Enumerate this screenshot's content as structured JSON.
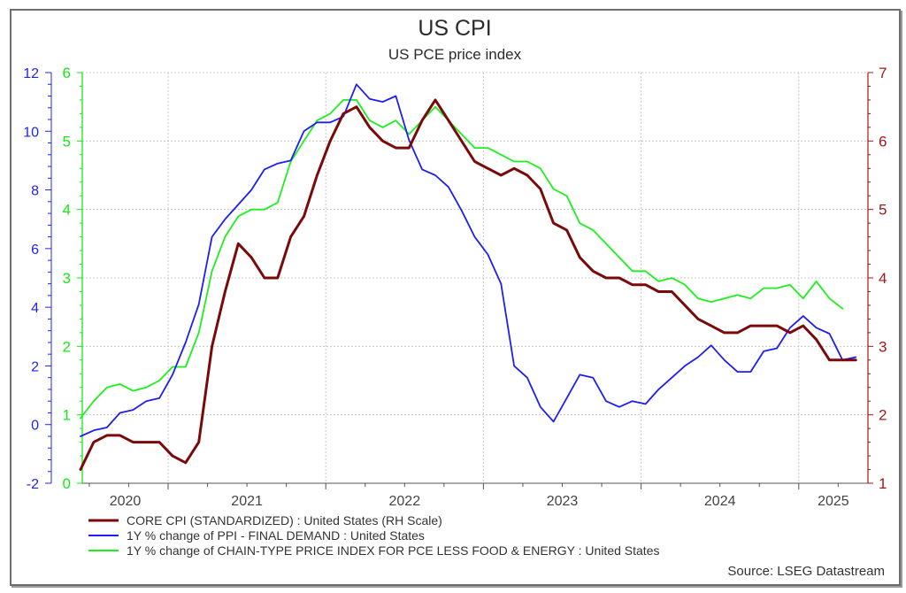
{
  "chart_data": {
    "type": "line",
    "title": "US CPI",
    "subtitle": "US PCE price index",
    "source": "Source: LSEG Datastream",
    "x_start": "2020-06",
    "x_frequency": "monthly",
    "x_ticks": [
      "2020",
      "2021",
      "2022",
      "2023",
      "2024",
      "2025"
    ],
    "axes": {
      "left_outer": {
        "color": "#2323f0",
        "range": [
          -2,
          12
        ],
        "ticks": [
          "-2",
          "0",
          "2",
          "4",
          "6",
          "8",
          "10",
          "12"
        ],
        "series": "PPI"
      },
      "left_inner": {
        "color": "#19e619",
        "range": [
          0,
          6
        ],
        "ticks": [
          "0",
          "1",
          "2",
          "3",
          "4",
          "5",
          "6"
        ],
        "series": "PCE"
      },
      "right": {
        "color": "#a01818",
        "range": [
          1,
          7
        ],
        "ticks": [
          "1",
          "2",
          "3",
          "4",
          "5",
          "6",
          "7"
        ],
        "series": "CPI"
      }
    },
    "grid": true,
    "legend_position": "bottom-left",
    "series": [
      {
        "key": "CPI",
        "name": "CORE CPI (STANDARDIZED) : United States (RH Scale)",
        "color": "#7a0a0a",
        "axis": "right",
        "values": [
          1.2,
          1.6,
          1.7,
          1.7,
          1.6,
          1.6,
          1.6,
          1.4,
          1.3,
          1.6,
          3.0,
          3.8,
          4.5,
          4.3,
          4.0,
          4.0,
          4.6,
          4.9,
          5.5,
          6.0,
          6.4,
          6.5,
          6.2,
          6.0,
          5.9,
          5.9,
          6.3,
          6.6,
          6.3,
          6.0,
          5.7,
          5.6,
          5.5,
          5.6,
          5.5,
          5.3,
          4.8,
          4.7,
          4.3,
          4.1,
          4.0,
          4.0,
          3.9,
          3.9,
          3.8,
          3.8,
          3.6,
          3.4,
          3.3,
          3.2,
          3.2,
          3.3,
          3.3,
          3.3,
          3.2,
          3.3,
          3.1,
          2.8,
          2.8,
          2.8
        ]
      },
      {
        "key": "PPI",
        "name": "1Y % change of PPI - FINAL DEMAND : United States",
        "color": "#1e1ef5",
        "axis": "left_outer",
        "values": [
          -0.4,
          -0.2,
          -0.1,
          0.4,
          0.5,
          0.8,
          0.9,
          1.7,
          2.8,
          4.1,
          6.4,
          7.0,
          7.5,
          8.0,
          8.7,
          8.9,
          9.0,
          10.0,
          10.3,
          10.3,
          10.5,
          11.6,
          11.1,
          11.0,
          11.2,
          9.7,
          8.7,
          8.5,
          8.1,
          7.3,
          6.4,
          5.8,
          4.8,
          2.0,
          1.6,
          0.6,
          0.1,
          0.9,
          1.7,
          1.6,
          0.8,
          0.6,
          0.8,
          0.7,
          1.2,
          1.6,
          2.0,
          2.3,
          2.7,
          2.2,
          1.8,
          1.8,
          2.5,
          2.6,
          3.3,
          3.7,
          3.3,
          3.1,
          2.2,
          2.3
        ]
      },
      {
        "key": "PCE",
        "name": "1Y % change of CHAIN-TYPE PRICE INDEX FOR PCE LESS FOOD & ENERGY : United States",
        "color": "#1ef01e",
        "axis": "left_inner",
        "values": [
          0.95,
          1.2,
          1.4,
          1.45,
          1.35,
          1.4,
          1.5,
          1.7,
          1.7,
          2.2,
          3.1,
          3.6,
          3.9,
          4.0,
          4.0,
          4.1,
          4.7,
          5.0,
          5.3,
          5.4,
          5.6,
          5.6,
          5.3,
          5.2,
          5.3,
          5.1,
          5.3,
          5.5,
          5.3,
          5.1,
          4.9,
          4.9,
          4.8,
          4.7,
          4.7,
          4.6,
          4.3,
          4.2,
          3.8,
          3.7,
          3.5,
          3.3,
          3.1,
          3.1,
          2.95,
          3.0,
          2.9,
          2.7,
          2.65,
          2.7,
          2.75,
          2.7,
          2.85,
          2.85,
          2.9,
          2.7,
          2.95,
          2.7,
          2.55
        ]
      }
    ]
  }
}
